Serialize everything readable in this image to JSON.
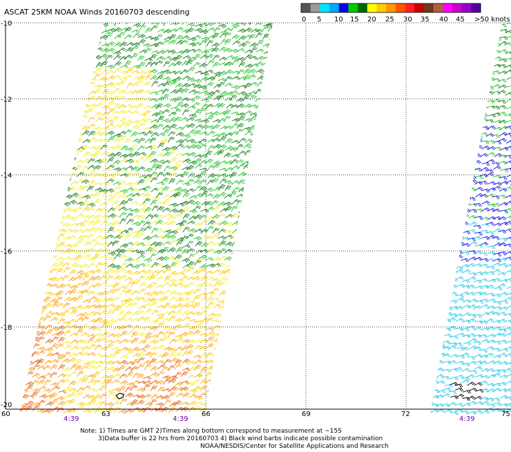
{
  "title": "ASCAT 25KM NOAA Winds 20160703 descending",
  "legend": {
    "labels": [
      "0",
      "5",
      "10",
      "15",
      "20",
      "25",
      "30",
      "35",
      "40",
      "45",
      ">50 knots"
    ],
    "colors": [
      "#555555",
      "#9a9a9a",
      "#00e5ff",
      "#00aaff",
      "#0000ee",
      "#00cc00",
      "#006600",
      "#ffff00",
      "#ffcc00",
      "#ff9900",
      "#ff5500",
      "#ff2020",
      "#cc0000",
      "#6b3a1e",
      "#b06040",
      "#ff00ff",
      "#cc00cc",
      "#9900cc",
      "#550099"
    ]
  },
  "axes": {
    "lat_labels": [
      "-10",
      "-12",
      "-14",
      "-16",
      "-18",
      "-20"
    ],
    "lon_labels": [
      "60",
      "63",
      "66",
      "69",
      "72",
      "75"
    ]
  },
  "pass_times": [
    "4:39",
    "4:39",
    "4:39"
  ],
  "notes": [
    "Note: 1) Times are GMT 2)Times along bottom correspond to measurement at ~15S",
    "3)Data buffer is 22 hrs from 20160703 4) Black wind barbs indicate possible contamination",
    "NOAA/NESDIS/Center for Satellite Applications and Research"
  ],
  "wind_colors": {
    "cyan": "#22c8e8",
    "blue": "#1515e0",
    "green": "#22c22a",
    "dark_green": "#0b7a10",
    "yellow": "#f2ee2a",
    "gold": "#ffc800",
    "orange": "#ff9a10",
    "dark_orange": "#e85a05",
    "black": "#000000"
  }
}
